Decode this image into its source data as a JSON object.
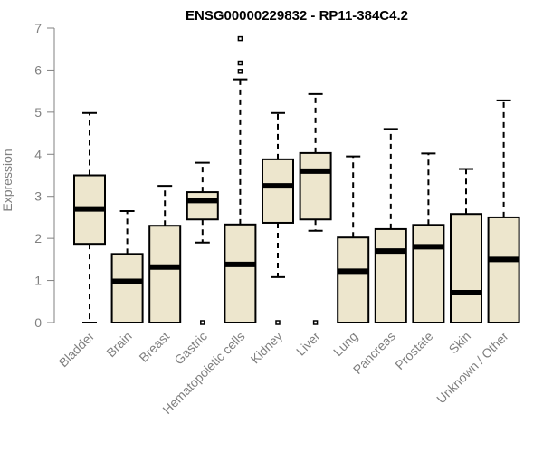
{
  "chart_data": {
    "type": "boxplot",
    "title": "ENSG00000229832 - RP11-384C4.2",
    "xlabel": "",
    "ylabel": "Expression",
    "ylim": [
      0,
      7
    ],
    "yticks": [
      0,
      1,
      2,
      3,
      4,
      5,
      6,
      7
    ],
    "categories": [
      "Bladder",
      "Brain",
      "Breast",
      "Gastric",
      "Hematopoietic cells",
      "Kidney",
      "Liver",
      "Lung",
      "Pancreas",
      "Prostate",
      "Skin",
      "Unknown / Other"
    ],
    "boxes": [
      {
        "min": 0.0,
        "q1": 1.87,
        "median": 2.7,
        "q3": 3.5,
        "max": 4.98,
        "outliers": []
      },
      {
        "min": 0.0,
        "q1": 0.0,
        "median": 0.98,
        "q3": 1.63,
        "max": 2.65,
        "outliers": []
      },
      {
        "min": 0.0,
        "q1": 0.0,
        "median": 1.32,
        "q3": 2.3,
        "max": 3.25,
        "outliers": []
      },
      {
        "min": 1.9,
        "q1": 2.45,
        "median": 2.9,
        "q3": 3.1,
        "max": 3.8,
        "outliers": [
          0.0
        ]
      },
      {
        "min": 0.0,
        "q1": 0.0,
        "median": 1.38,
        "q3": 2.33,
        "max": 5.78,
        "outliers": [
          5.97,
          6.17,
          6.75
        ]
      },
      {
        "min": 1.08,
        "q1": 2.37,
        "median": 3.25,
        "q3": 3.88,
        "max": 4.98,
        "outliers": [
          0.0
        ]
      },
      {
        "min": 2.18,
        "q1": 2.45,
        "median": 3.6,
        "q3": 4.03,
        "max": 5.43,
        "outliers": [
          0.0
        ]
      },
      {
        "min": 0.0,
        "q1": 0.0,
        "median": 1.22,
        "q3": 2.02,
        "max": 3.95,
        "outliers": []
      },
      {
        "min": 0.0,
        "q1": 0.0,
        "median": 1.7,
        "q3": 2.22,
        "max": 4.6,
        "outliers": []
      },
      {
        "min": 0.0,
        "q1": 0.0,
        "median": 1.8,
        "q3": 2.32,
        "max": 4.02,
        "outliers": []
      },
      {
        "min": 0.0,
        "q1": 0.0,
        "median": 0.71,
        "q3": 2.58,
        "max": 3.65,
        "outliers": []
      },
      {
        "min": 0.0,
        "q1": 0.0,
        "median": 1.5,
        "q3": 2.5,
        "max": 5.28,
        "outliers": []
      }
    ],
    "colors": {
      "box_fill": "#ede6cd",
      "box_stroke": "#000000",
      "median": "#000000",
      "axis": "#808080",
      "title": "#000000"
    }
  }
}
